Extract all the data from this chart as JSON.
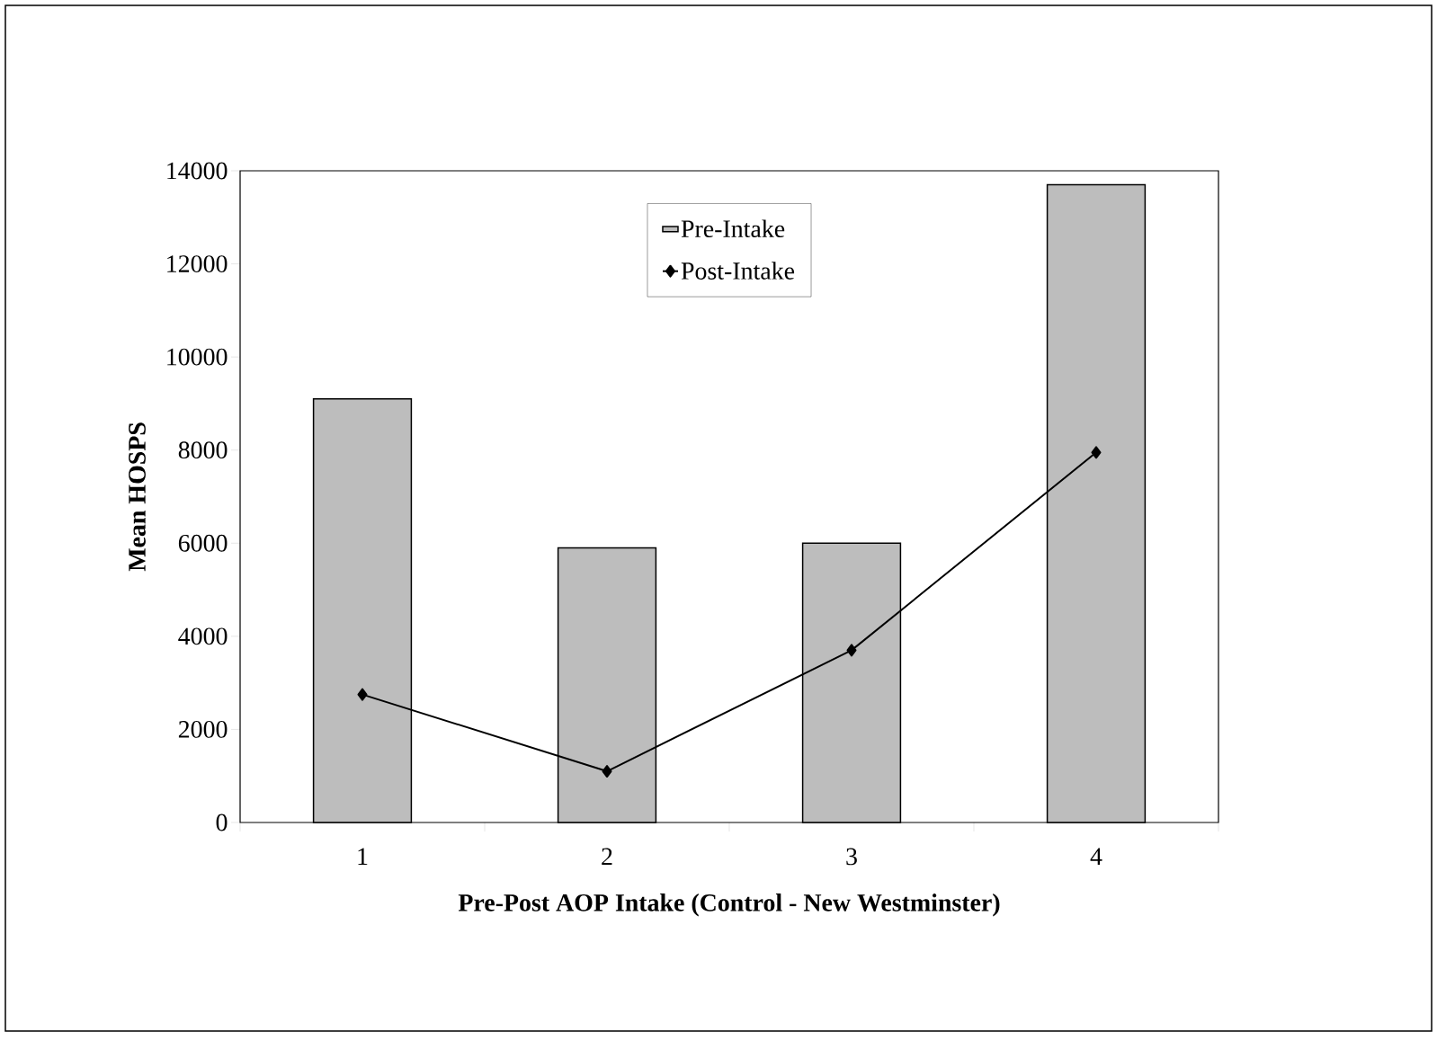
{
  "chart_data": {
    "type": "bar",
    "xlabel": "Pre-Post AOP Intake (Control - New Westminster)",
    "ylabel": "Mean HOSPS",
    "categories": [
      "1",
      "2",
      "3",
      "4"
    ],
    "series": [
      {
        "name": "Pre-Intake",
        "color": "#bdbdbd",
        "values": [
          9100,
          5900,
          6000,
          13700
        ]
      },
      {
        "name": "Post-Intake",
        "type": "line",
        "color": "#000000",
        "marker": "diamond",
        "values": [
          2750,
          1100,
          3700,
          7950
        ]
      }
    ],
    "ylim": [
      0,
      14000
    ],
    "yticks": [
      0,
      2000,
      4000,
      6000,
      8000,
      10000,
      12000,
      14000
    ],
    "grid": false,
    "legend": "top"
  }
}
